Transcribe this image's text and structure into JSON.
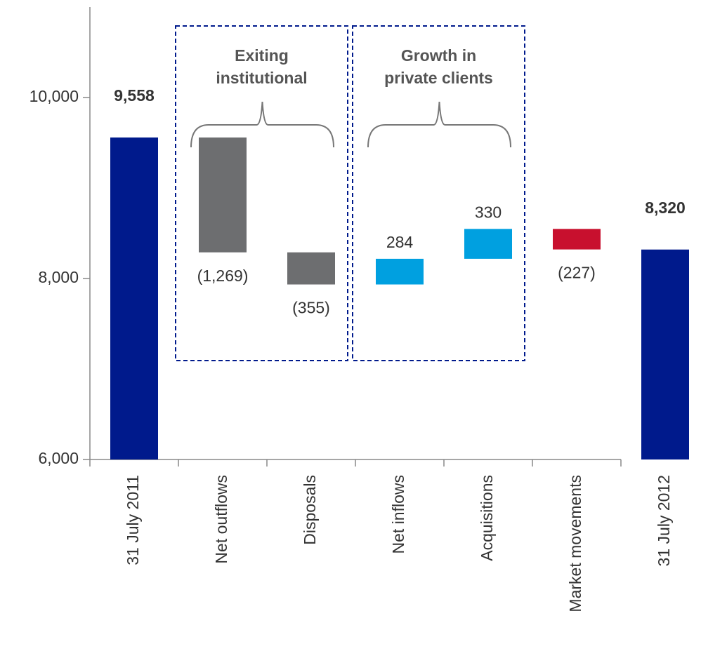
{
  "chart_data": {
    "type": "waterfall",
    "categories": [
      "31 July 2011",
      "Net outflows",
      "Disposals",
      "Net inflows",
      "Acquisitions",
      "Market movements",
      "31 July 2012"
    ],
    "values": [
      9558,
      -1269,
      -355,
      284,
      330,
      -227,
      8320
    ],
    "value_labels": [
      "9,558",
      "(1,269)",
      "(355)",
      "284",
      "330",
      "(227)",
      "8,320"
    ],
    "is_total": [
      true,
      false,
      false,
      false,
      false,
      false,
      true
    ],
    "colors": [
      "#001a8c",
      "#6d6e70",
      "#6d6e70",
      "#00a0e0",
      "#00a0e0",
      "#c8102e",
      "#001a8c"
    ],
    "ylim": [
      6000,
      11000
    ],
    "yticks": [
      {
        "value": 6000,
        "label": "6,000"
      },
      {
        "value": 8000,
        "label": "8,000"
      },
      {
        "value": 10000,
        "label": "10,000"
      }
    ],
    "groups": [
      {
        "label": "Exiting institutional",
        "members": [
          1,
          2
        ]
      },
      {
        "label": "Growth in private clients",
        "members": [
          3,
          4
        ]
      }
    ]
  }
}
